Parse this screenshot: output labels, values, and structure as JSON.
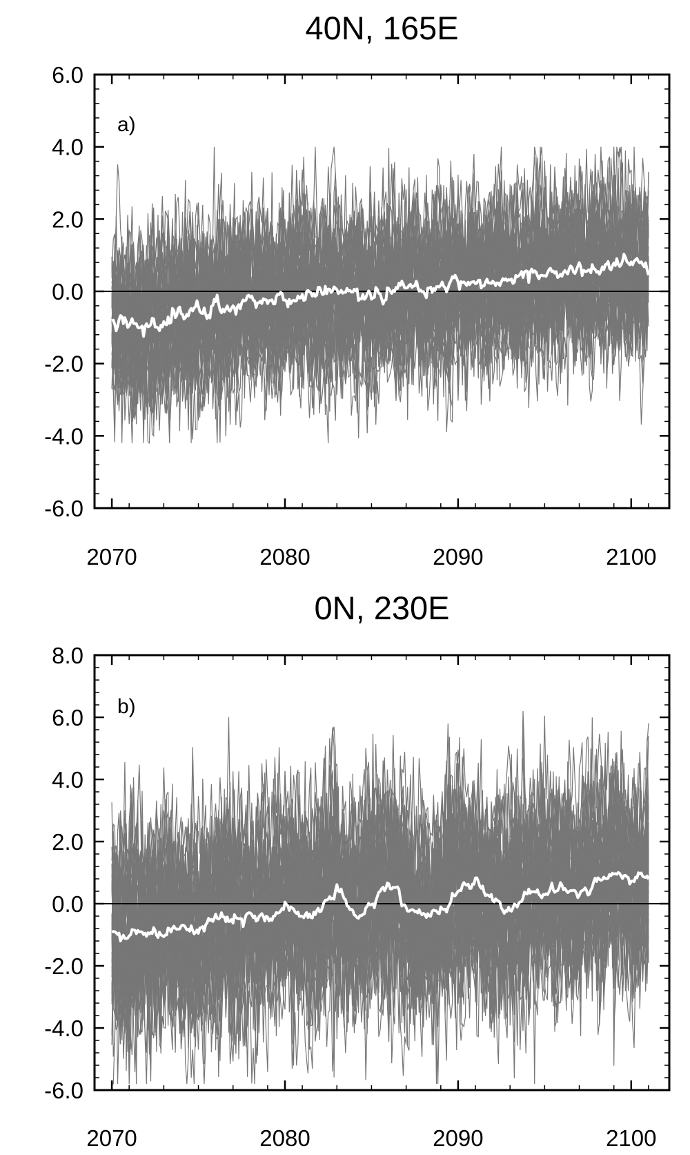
{
  "chart_data": [
    {
      "type": "line",
      "title": "40N, 165E",
      "panel_label": "a)",
      "xlabel": "",
      "ylabel": "",
      "xlim": [
        2069,
        2102.2
      ],
      "ylim": [
        -6.0,
        6.0
      ],
      "x_ticks": [
        2070,
        2080,
        2090,
        2100
      ],
      "x_tick_labels": [
        "2070",
        "2080",
        "2090",
        "2100"
      ],
      "y_ticks": [
        -6.0,
        -4.0,
        -2.0,
        0.0,
        2.0,
        4.0,
        6.0
      ],
      "y_tick_labels": [
        "-6.0",
        "-4.0",
        "-2.0",
        "0.0",
        "2.0",
        "4.0",
        "6.0"
      ],
      "zero_line": 0.0,
      "grid": false,
      "ensemble": {
        "member_count": 40,
        "x_start": 2070.0,
        "x_end": 2101.0,
        "samples_per_year": 12,
        "color": "#777777",
        "spread": 1.3,
        "envelope": [
          -4.2,
          4.0
        ]
      },
      "mean_series": {
        "color": "#ffffff",
        "x": [
          2070.0,
          2071.0,
          2072.0,
          2073.0,
          2074.0,
          2075.0,
          2076.0,
          2077.0,
          2078.0,
          2079.0,
          2080.0,
          2081.0,
          2082.0,
          2083.0,
          2084.0,
          2085.0,
          2086.0,
          2087.0,
          2088.0,
          2089.0,
          2090.0,
          2091.0,
          2092.0,
          2093.0,
          2094.0,
          2095.0,
          2096.0,
          2097.0,
          2098.0,
          2099.0,
          2100.0,
          2101.0
        ],
        "values": [
          -0.8,
          -0.9,
          -1.0,
          -0.8,
          -0.7,
          -0.6,
          -0.5,
          -0.3,
          -0.2,
          -0.3,
          -0.2,
          -0.1,
          -0.1,
          -0.05,
          0.0,
          -0.1,
          0.0,
          0.1,
          0.0,
          0.1,
          0.2,
          0.2,
          0.3,
          0.35,
          0.4,
          0.45,
          0.5,
          0.55,
          0.6,
          0.65,
          0.75,
          0.8
        ]
      }
    },
    {
      "type": "line",
      "title": "0N, 230E",
      "panel_label": "b)",
      "xlabel": "",
      "ylabel": "",
      "xlim": [
        2069,
        2102.2
      ],
      "ylim": [
        -6.0,
        8.0
      ],
      "x_ticks": [
        2070,
        2080,
        2090,
        2100
      ],
      "x_tick_labels": [
        "2070",
        "2080",
        "2090",
        "2100"
      ],
      "y_ticks": [
        -6.0,
        -4.0,
        -2.0,
        0.0,
        2.0,
        4.0,
        6.0,
        8.0
      ],
      "y_tick_labels": [
        "-6.0",
        "-4.0",
        "-2.0",
        "0.0",
        "2.0",
        "4.0",
        "6.0",
        "8.0"
      ],
      "zero_line": 0.0,
      "grid": false,
      "ensemble": {
        "member_count": 40,
        "x_start": 2070.0,
        "x_end": 2101.0,
        "samples_per_year": 12,
        "color": "#777777",
        "spread": 1.9,
        "envelope": [
          -5.8,
          6.2
        ]
      },
      "mean_series": {
        "color": "#ffffff",
        "x": [
          2070.0,
          2071.0,
          2072.0,
          2073.0,
          2074.0,
          2075.0,
          2076.0,
          2077.0,
          2078.0,
          2079.0,
          2080.0,
          2081.0,
          2082.0,
          2083.0,
          2084.0,
          2085.0,
          2086.0,
          2087.0,
          2088.0,
          2089.0,
          2090.0,
          2091.0,
          2092.0,
          2093.0,
          2094.0,
          2095.0,
          2096.0,
          2097.0,
          2098.0,
          2099.0,
          2100.0,
          2101.0
        ],
        "values": [
          -0.9,
          -1.0,
          -0.8,
          -0.9,
          -0.7,
          -0.8,
          -0.3,
          -0.5,
          -0.3,
          -0.5,
          -0.1,
          -0.3,
          -0.2,
          0.5,
          -0.3,
          0.0,
          0.5,
          -0.1,
          -0.5,
          -0.1,
          0.3,
          0.7,
          0.1,
          -0.2,
          0.3,
          0.5,
          0.5,
          0.3,
          0.7,
          1.0,
          0.9,
          0.8
        ]
      }
    }
  ]
}
